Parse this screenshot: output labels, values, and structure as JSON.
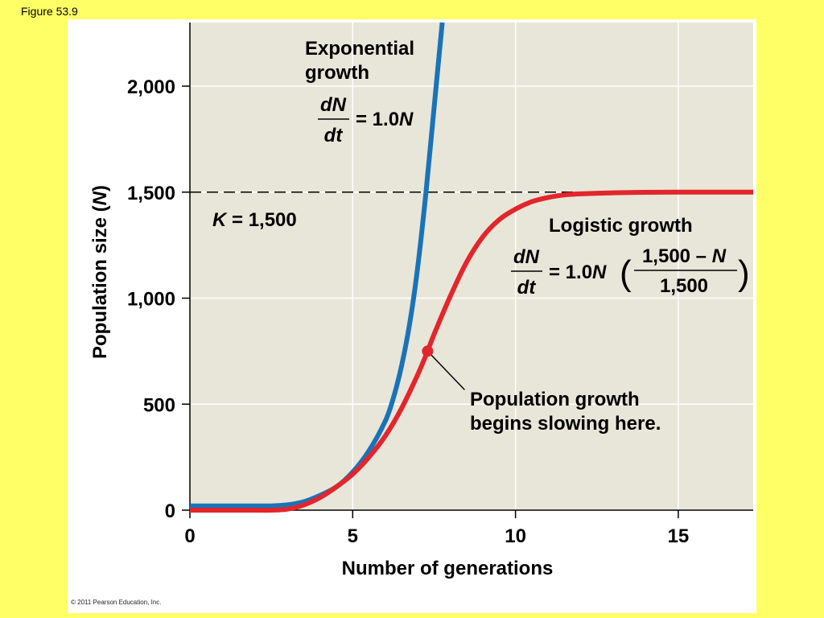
{
  "figure_label": "Figure 53.9",
  "copyright": "© 2011 Pearson Education, Inc.",
  "colors": {
    "page_background": "#ffff66",
    "plot_background": "#e8e6d9",
    "exponential": "#1a73b8",
    "logistic": "#e1262c",
    "grid": "#ffffff"
  },
  "chart_data": {
    "type": "line",
    "title": "",
    "xlabel": "Number of generations",
    "ylabel": "Population size (N)",
    "ylabel_parts": {
      "before": "Population size (",
      "italic": "N",
      "after": ")"
    },
    "xlim": [
      0,
      17.3
    ],
    "ylim": [
      0,
      2300
    ],
    "x_ticks": [
      0,
      5,
      10,
      15
    ],
    "x_tick_labels": [
      "0",
      "5",
      "10",
      "15"
    ],
    "y_ticks": [
      0,
      500,
      1000,
      1500,
      2000
    ],
    "y_tick_labels": [
      "0",
      "500",
      "1,000",
      "1,500",
      "2,000"
    ],
    "grid": true,
    "series": [
      {
        "name": "Exponential growth",
        "color": "#1a73b8",
        "x": [
          0,
          1,
          2,
          2.5,
          3,
          3.5,
          4,
          4.5,
          5,
          5.5,
          6,
          6.25,
          6.5,
          6.75,
          7,
          7.25,
          7.5,
          7.75
        ],
        "y": [
          20,
          20,
          20,
          20,
          25,
          40,
          70,
          110,
          180,
          280,
          420,
          530,
          680,
          880,
          1150,
          1500,
          1900,
          2300
        ]
      },
      {
        "name": "Logistic growth",
        "color": "#e1262c",
        "x": [
          0,
          1,
          2,
          2.5,
          3,
          3.5,
          4,
          4.5,
          5,
          5.5,
          6,
          6.5,
          7,
          7.3,
          7.5,
          8,
          8.5,
          9,
          9.5,
          10,
          10.5,
          11,
          11.5,
          12,
          13,
          14,
          15,
          16,
          17.3
        ],
        "y": [
          0,
          0,
          0,
          0,
          5,
          25,
          60,
          110,
          170,
          250,
          350,
          480,
          640,
          750,
          830,
          1010,
          1170,
          1290,
          1370,
          1420,
          1455,
          1475,
          1487,
          1492,
          1497,
          1499,
          1500,
          1500,
          1500
        ]
      }
    ],
    "carrying_capacity": {
      "y": 1500,
      "label_italic": "K",
      "label_rest": " = 1,500"
    },
    "annotations": {
      "exponential_label": [
        "Exponential",
        "growth"
      ],
      "exponential_eq": {
        "numerator": "dN",
        "denominator": "dt",
        "rhs": "= 1.0",
        "rhs_italic": "N"
      },
      "logistic_label": "Logistic growth",
      "logistic_eq": {
        "numerator": "dN",
        "denominator": "dt",
        "rhs": "= 1.0",
        "rhs_italic": "N",
        "frac_top": "1,500 – ",
        "frac_top_italic": "N",
        "frac_bottom": "1,500"
      },
      "slowing_point": {
        "x": 7.3,
        "y": 750
      },
      "slowing_label": [
        "Population growth",
        "begins slowing here."
      ]
    }
  }
}
